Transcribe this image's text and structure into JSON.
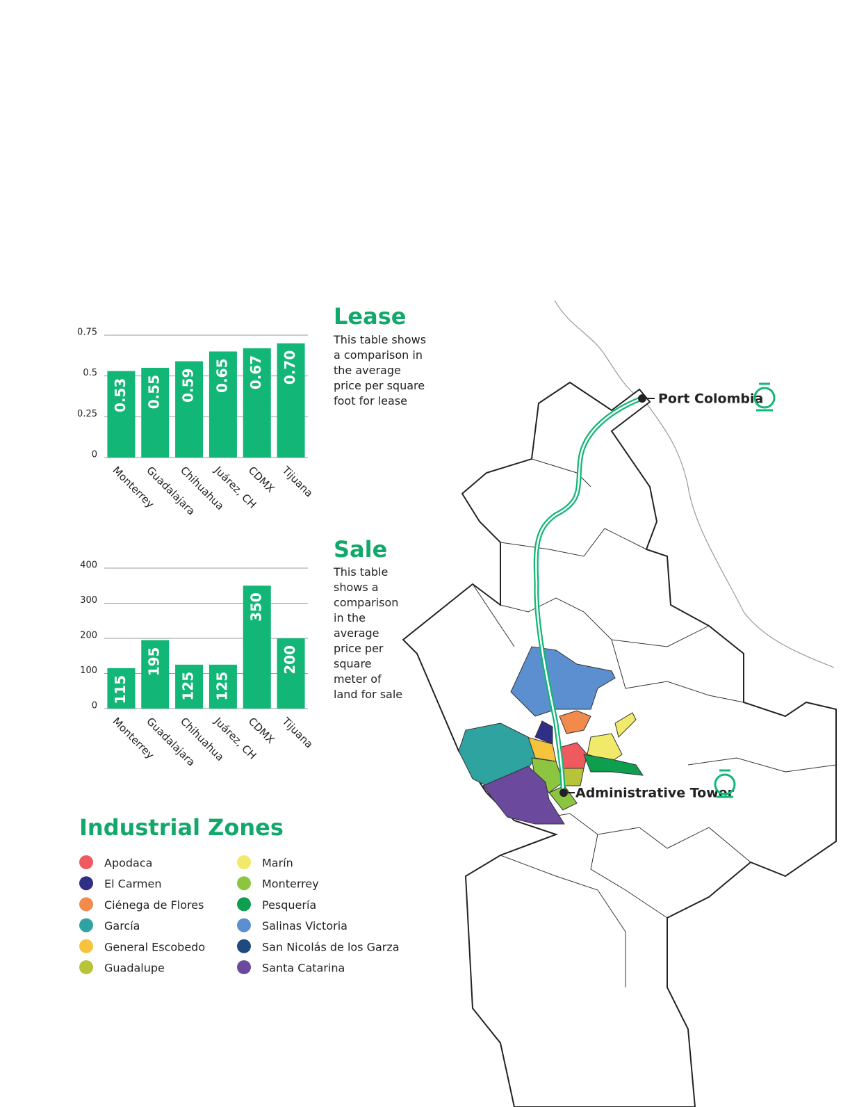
{
  "chart_data": [
    {
      "type": "bar",
      "title": "Lease",
      "description": "This table shows a comparison in the average price per square foot for lease",
      "categories": [
        "Monterrey",
        "Guadalajara",
        "Chihuahua",
        "Juárez, CH",
        "CDMX",
        "Tijuana"
      ],
      "values": [
        0.53,
        0.55,
        0.59,
        0.65,
        0.67,
        0.7
      ],
      "value_labels": [
        "0.53",
        "0.55",
        "0.59",
        "0.65",
        "0.67",
        "0.70"
      ],
      "color": "#12b676",
      "ylim": [
        0,
        0.75
      ],
      "yticks": [
        0,
        0.25,
        0.5,
        0.75
      ],
      "grid": true
    },
    {
      "type": "bar",
      "title": "Sale",
      "description": "This table shows a comparison in the average price per square meter of land for sale",
      "categories": [
        "Monterrey",
        "Guadalajara",
        "Chihuahua",
        "Juárez, CH",
        "CDMX",
        "Tijuana"
      ],
      "values": [
        115,
        195,
        125,
        125,
        350,
        200
      ],
      "color": "#12b676",
      "ylim": [
        0,
        400
      ],
      "yticks": [
        0,
        100,
        200,
        300,
        400
      ],
      "grid": true
    }
  ],
  "legend": {
    "title": "Industrial Zones",
    "items": [
      {
        "name": "Apodaca",
        "color": "#ef5a5f"
      },
      {
        "name": "El Carmen",
        "color": "#2f2f86"
      },
      {
        "name": "Ciénega de Flores",
        "color": "#f28a4b"
      },
      {
        "name": "García",
        "color": "#2fa3a0"
      },
      {
        "name": "General Escobedo",
        "color": "#f7c33c"
      },
      {
        "name": "Guadalupe",
        "color": "#b7c43a"
      },
      {
        "name": "Marín",
        "color": "#f0e96a"
      },
      {
        "name": "Monterrey",
        "color": "#8cc540"
      },
      {
        "name": "Pesquería",
        "color": "#0e9f4e"
      },
      {
        "name": "Salinas Victoria",
        "color": "#5b8fcf"
      },
      {
        "name": "San Nicolás de los Garza",
        "color": "#1f4a80"
      },
      {
        "name": "Santa Catarina",
        "color": "#6b4a9e"
      }
    ]
  },
  "map": {
    "labels": [
      "Port Colombia",
      "Administrative Tower"
    ]
  }
}
